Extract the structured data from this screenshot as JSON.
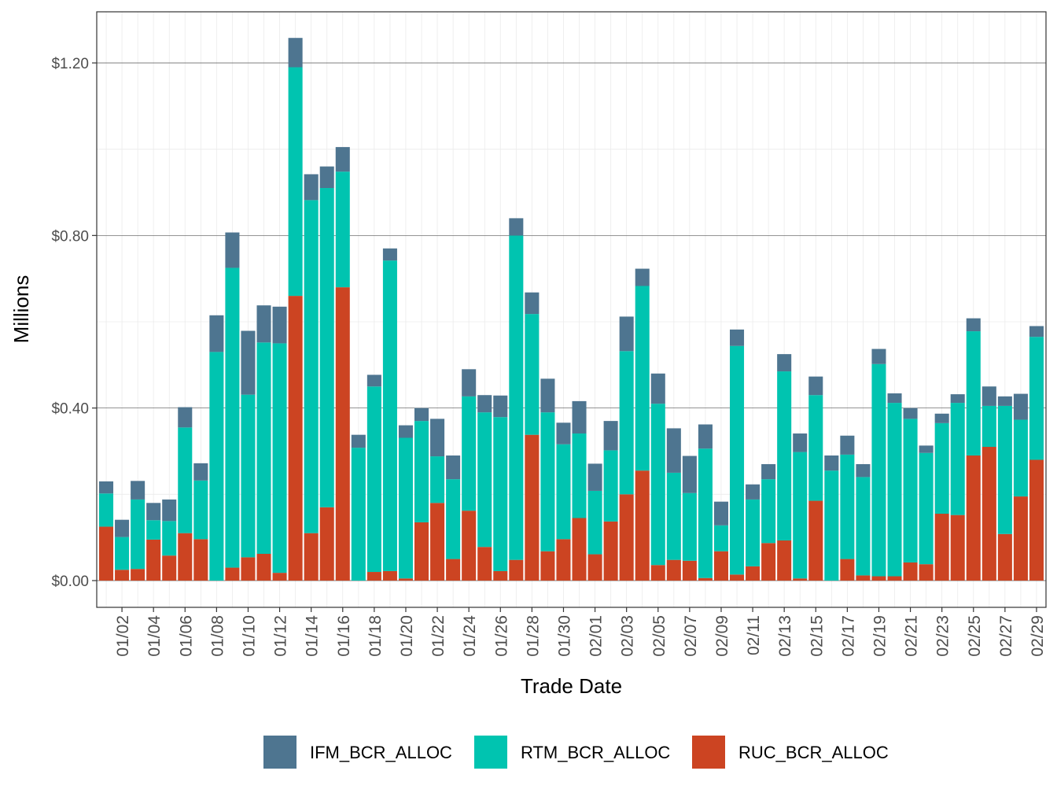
{
  "chart_data": {
    "type": "bar",
    "stacked": true,
    "xlabel": "Trade Date",
    "ylabel": "Millions",
    "ylim": [
      -0.062,
      1.32
    ],
    "y_ticks": [
      0.0,
      0.4,
      0.8,
      1.2
    ],
    "y_tick_labels": [
      "$0.00",
      "$0.40",
      "$0.80",
      "$1.20"
    ],
    "x_tick_labels": [
      "01/02",
      "01/04",
      "01/06",
      "01/08",
      "01/10",
      "01/12",
      "01/14",
      "01/16",
      "01/18",
      "01/20",
      "01/22",
      "01/24",
      "01/26",
      "01/28",
      "01/30",
      "02/01",
      "02/03",
      "02/05",
      "02/07",
      "02/09",
      "02/11",
      "02/13",
      "02/15",
      "02/17",
      "02/19",
      "02/21",
      "02/23",
      "02/25",
      "02/27",
      "02/29"
    ],
    "categories": [
      "01/01",
      "01/02",
      "01/03",
      "01/04",
      "01/05",
      "01/06",
      "01/07",
      "01/08",
      "01/09",
      "01/10",
      "01/11",
      "01/12",
      "01/13",
      "01/14",
      "01/15",
      "01/16",
      "01/17",
      "01/18",
      "01/19",
      "01/20",
      "01/21",
      "01/22",
      "01/23",
      "01/24",
      "01/25",
      "01/26",
      "01/27",
      "01/28",
      "01/29",
      "01/30",
      "01/31",
      "02/01",
      "02/02",
      "02/03",
      "02/04",
      "02/05",
      "02/06",
      "02/07",
      "02/08",
      "02/09",
      "02/10",
      "02/11",
      "02/12",
      "02/13",
      "02/14",
      "02/15",
      "02/16",
      "02/17",
      "02/18",
      "02/19",
      "02/20",
      "02/21",
      "02/22",
      "02/23",
      "02/24",
      "02/25",
      "02/26",
      "02/27",
      "02/28",
      "02/29"
    ],
    "series": [
      {
        "name": "RUC_BCR_ALLOC",
        "color": "#CC4422",
        "values": [
          0.125,
          0.025,
          0.027,
          0.095,
          0.058,
          0.11,
          0.096,
          0.0,
          0.03,
          0.054,
          0.062,
          0.018,
          0.66,
          0.11,
          0.17,
          0.68,
          0.0,
          0.02,
          0.022,
          0.005,
          0.135,
          0.18,
          0.05,
          0.162,
          0.078,
          0.022,
          0.048,
          0.338,
          0.068,
          0.096,
          0.145,
          0.061,
          0.137,
          0.2,
          0.255,
          0.036,
          0.048,
          0.046,
          0.006,
          0.068,
          0.014,
          0.033,
          0.087,
          0.093,
          0.005,
          0.185,
          0.0,
          0.05,
          0.012,
          0.01,
          0.01,
          0.042,
          0.038,
          0.155,
          0.152,
          0.29,
          0.31,
          0.108,
          0.195,
          0.28
        ]
      },
      {
        "name": "RTM_BCR_ALLOC",
        "color": "#00C4B0",
        "values": [
          0.077,
          0.076,
          0.161,
          0.045,
          0.08,
          0.245,
          0.136,
          0.53,
          0.695,
          0.377,
          0.49,
          0.532,
          0.53,
          0.772,
          0.74,
          0.268,
          0.308,
          0.43,
          0.72,
          0.326,
          0.235,
          0.108,
          0.185,
          0.265,
          0.312,
          0.357,
          0.752,
          0.28,
          0.322,
          0.22,
          0.196,
          0.147,
          0.165,
          0.332,
          0.428,
          0.374,
          0.202,
          0.157,
          0.3,
          0.06,
          0.53,
          0.155,
          0.148,
          0.392,
          0.293,
          0.245,
          0.255,
          0.242,
          0.228,
          0.492,
          0.402,
          0.333,
          0.258,
          0.21,
          0.26,
          0.288,
          0.095,
          0.297,
          0.178,
          0.285
        ]
      },
      {
        "name": "IFM_BCR_ALLOC",
        "color": "#4E7590",
        "values": [
          0.028,
          0.04,
          0.043,
          0.04,
          0.05,
          0.047,
          0.04,
          0.085,
          0.082,
          0.148,
          0.086,
          0.085,
          0.068,
          0.06,
          0.05,
          0.057,
          0.03,
          0.027,
          0.028,
          0.029,
          0.03,
          0.087,
          0.055,
          0.063,
          0.04,
          0.05,
          0.04,
          0.05,
          0.078,
          0.05,
          0.075,
          0.063,
          0.068,
          0.08,
          0.04,
          0.07,
          0.103,
          0.086,
          0.056,
          0.055,
          0.038,
          0.035,
          0.035,
          0.04,
          0.043,
          0.043,
          0.035,
          0.044,
          0.03,
          0.035,
          0.022,
          0.025,
          0.017,
          0.022,
          0.02,
          0.03,
          0.045,
          0.022,
          0.06,
          0.025
        ]
      }
    ],
    "legend": {
      "position": "bottom",
      "entries": [
        {
          "label": "IFM_BCR_ALLOC",
          "color": "#4E7590"
        },
        {
          "label": "RTM_BCR_ALLOC",
          "color": "#00C4B0"
        },
        {
          "label": "RUC_BCR_ALLOC",
          "color": "#CC4422"
        }
      ]
    },
    "grid": true,
    "theme": "bw"
  }
}
